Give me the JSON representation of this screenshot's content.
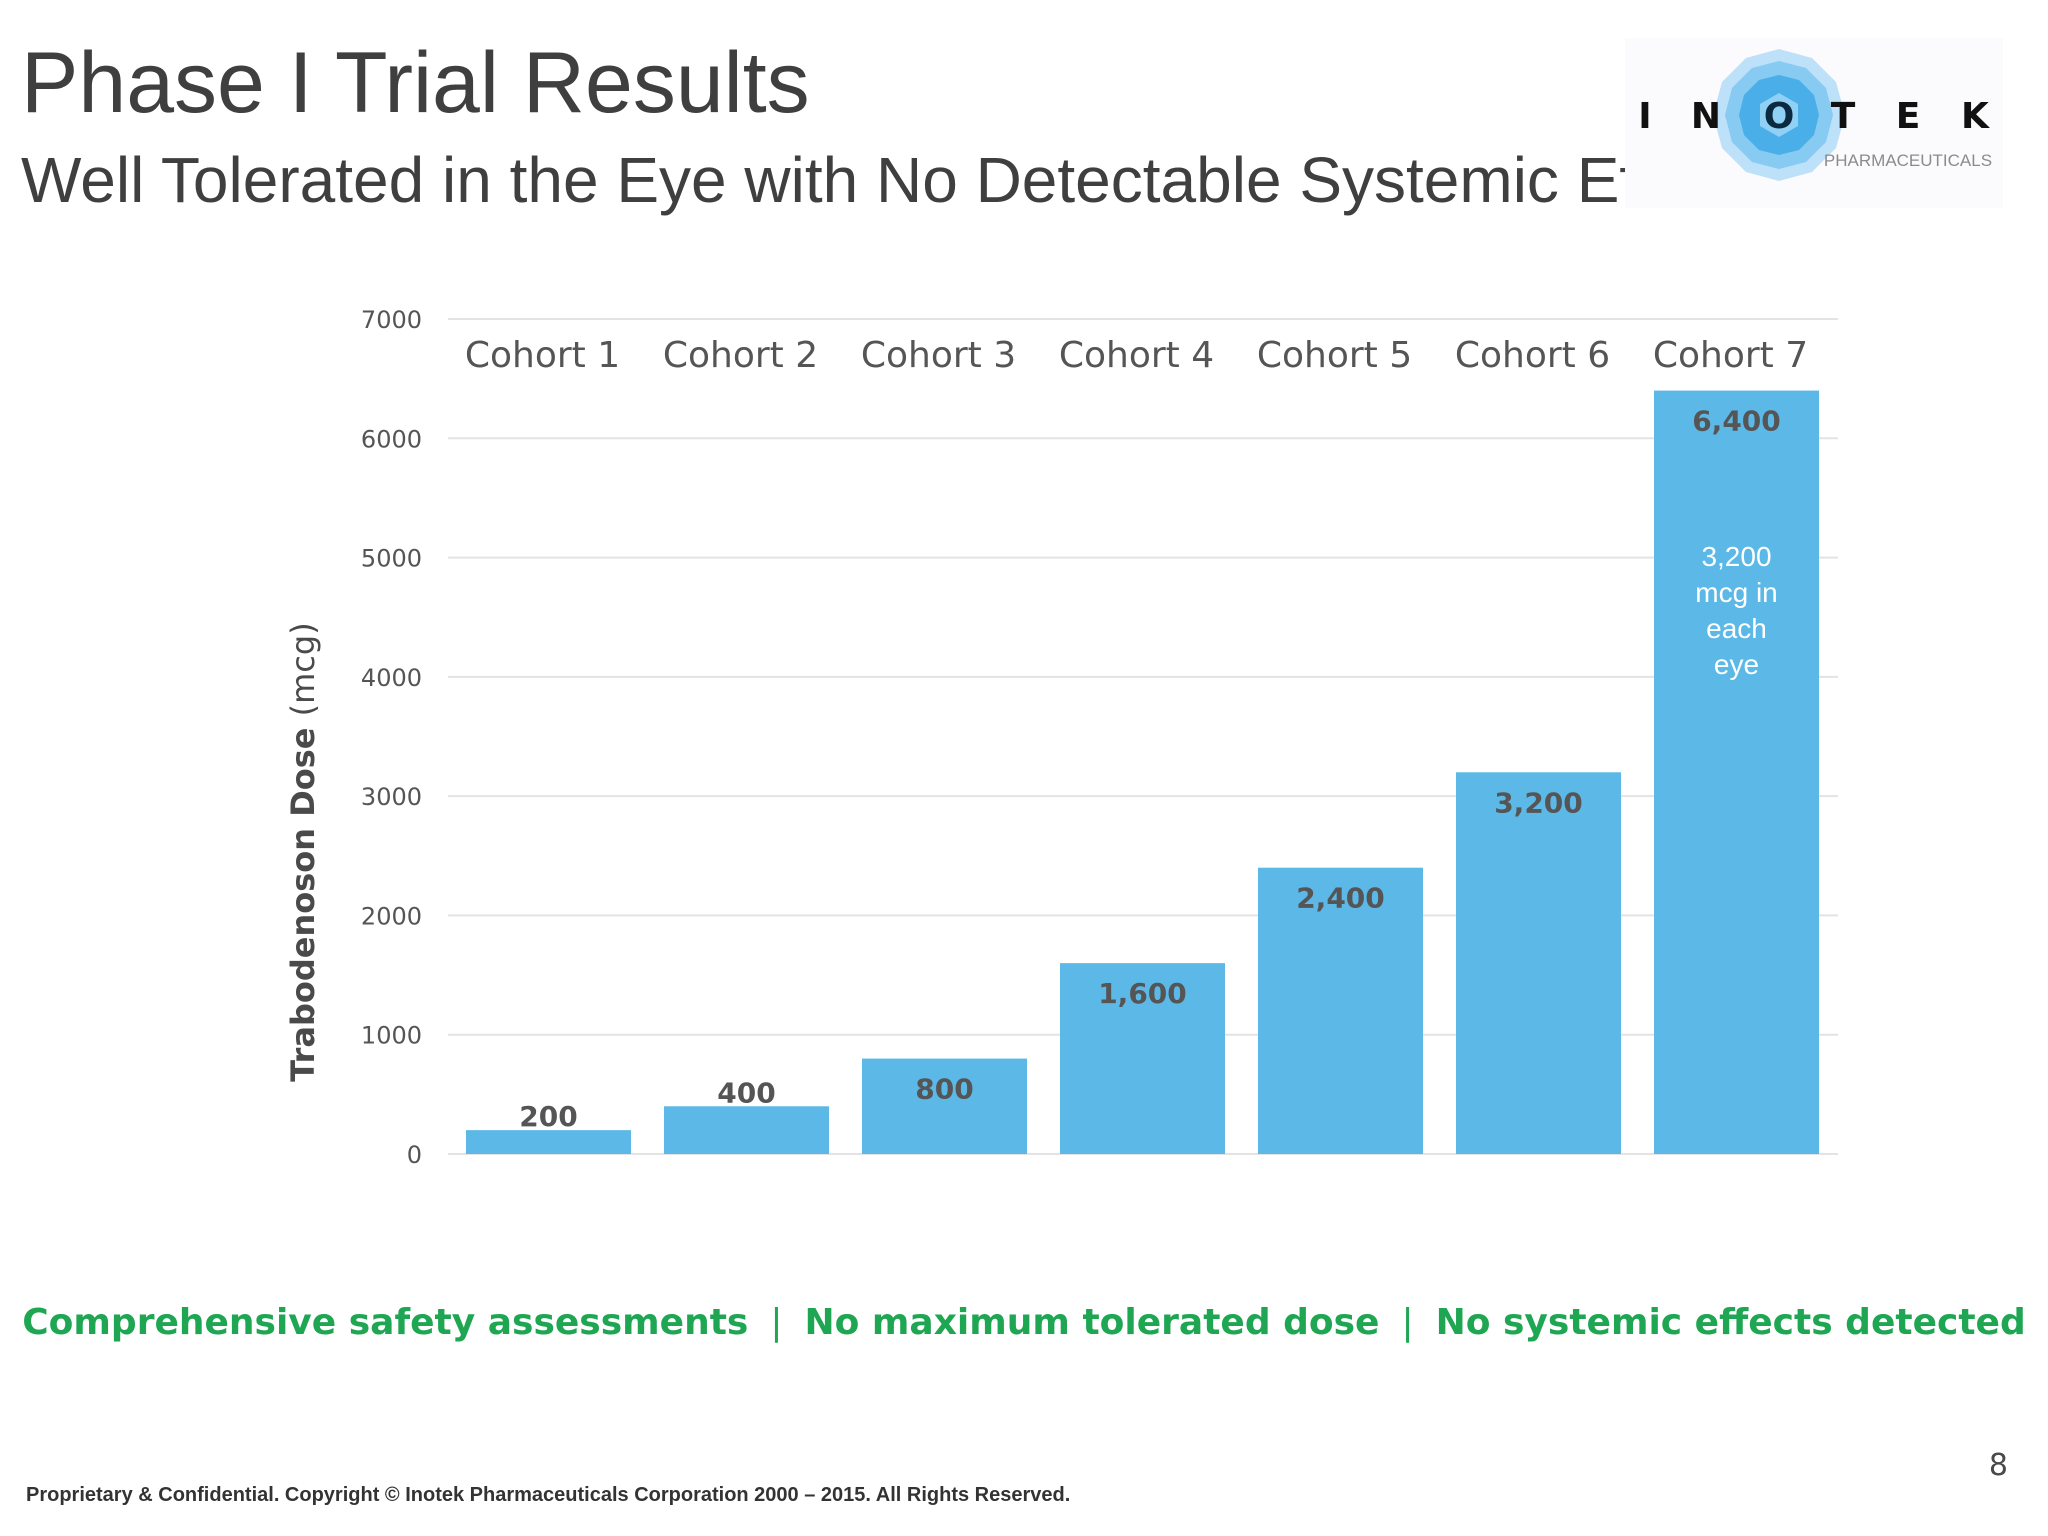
{
  "title": "Phase I Trial Results",
  "subtitle": "Well Tolerated in the Eye with No Detectable Systemic Effects",
  "logo": {
    "letters": [
      "I",
      "N",
      "O",
      "T",
      "E",
      "K"
    ],
    "tagline": "PHARMACEUTICALS",
    "color": "#4aaee8"
  },
  "chart_data": {
    "type": "bar",
    "categories": [
      "Cohort 1",
      "Cohort 2",
      "Cohort 3",
      "Cohort 4",
      "Cohort 5",
      "Cohort 6",
      "Cohort 7"
    ],
    "values": [
      200,
      400,
      800,
      1600,
      2400,
      3200,
      6400
    ],
    "value_labels": [
      "200",
      "400",
      "800",
      "1,600",
      "2,400",
      "3,200",
      "6,400"
    ],
    "annotations": [
      {
        "category": "Cohort 7",
        "lines": [
          "3,200",
          "mcg in",
          "each",
          "eye"
        ]
      }
    ],
    "ylabel_bold": "Trabodenoson Dose",
    "ylabel_unit": "(mcg)",
    "ylim": [
      0,
      7000
    ],
    "yticks": [
      0,
      1000,
      2000,
      3000,
      4000,
      5000,
      6000,
      7000
    ],
    "category_labels_position": "top",
    "grid": true,
    "bar_color": "#5cb8e6"
  },
  "taglines": [
    "Comprehensive safety assessments",
    "No maximum tolerated dose",
    "No systemic effects detected"
  ],
  "separator": "|",
  "page_number": "8",
  "footer": "Proprietary & Confidential. Copyright © Inotek Pharmaceuticals Corporation 2000 – 2015. All Rights Reserved."
}
